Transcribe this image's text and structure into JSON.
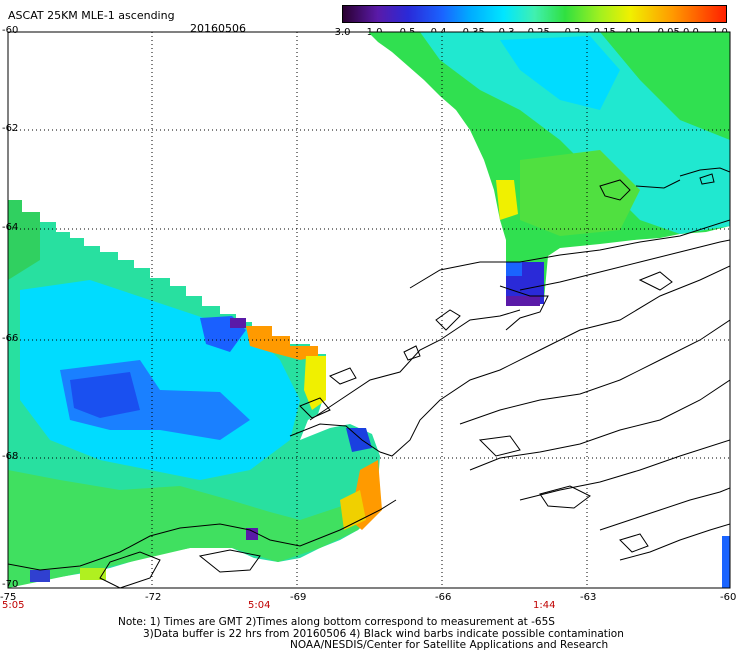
{
  "header": {
    "title": "ASCAT 25KM MLE-1 ascending",
    "date": "20160506"
  },
  "colorbar": {
    "labels": [
      "-3.0",
      "-1.0",
      "-0.5",
      "-0.4",
      "-0.35",
      "-0.3",
      "-0.25",
      "-0.2",
      "-0.15",
      "-0.1",
      "-0.05",
      "0.0",
      "1.0"
    ],
    "stops": [
      "#2a0030",
      "#5a1aa8",
      "#2a2ad8",
      "#1a64ff",
      "#00aaff",
      "#00e6ff",
      "#40f0b0",
      "#30e040",
      "#a0f020",
      "#f0f000",
      "#ff9a00",
      "#ff2000"
    ]
  },
  "axes": {
    "lat_labels": [
      "-60",
      "-62",
      "-64",
      "-66",
      "-68",
      "-70"
    ],
    "lon_labels": [
      "-75",
      "-72",
      "-69",
      "-66",
      "-63",
      "-60"
    ]
  },
  "time_labels": [
    "5:05",
    "5:04",
    "1:44"
  ],
  "notes": [
    "Note: 1) Times are GMT 2)Times along bottom correspond to measurement at -65S",
    "3)Data buffer is 22 hrs from 20160506 4) Black wind barbs indicate possible contamination",
    "NOAA/NESDIS/Center for Satellite Applications and Research"
  ]
}
